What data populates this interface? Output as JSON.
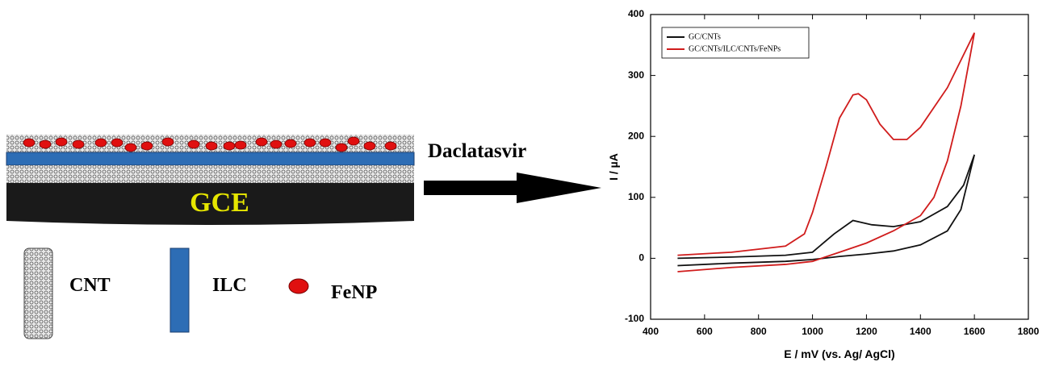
{
  "labels": {
    "electrode": "GCE",
    "cnt": "CNT",
    "ilc": "ILC",
    "fenp": "FeNP",
    "analyte": "Daclatasvir"
  },
  "chart_data": {
    "type": "line",
    "x_label": "E / mV (vs. Ag/ AgCl)",
    "y_label": "I / µA",
    "xlim": [
      400,
      1800
    ],
    "xticks": [
      400,
      600,
      800,
      1000,
      1200,
      1400,
      1600,
      1800
    ],
    "ylim": [
      -100,
      400
    ],
    "yticks": [
      -100,
      0,
      100,
      200,
      300,
      400
    ],
    "legend": "upper left",
    "series": [
      {
        "name": "GC/CNTs",
        "color": "#111111",
        "x": [
          500,
          700,
          900,
          1000,
          1080,
          1150,
          1220,
          1300,
          1400,
          1500,
          1560,
          1600,
          1550,
          1500,
          1400,
          1300,
          1200,
          1100,
          1000,
          900,
          700,
          500
        ],
        "values": [
          0,
          2,
          5,
          10,
          40,
          62,
          55,
          52,
          60,
          85,
          120,
          170,
          80,
          45,
          22,
          12,
          7,
          3,
          -2,
          -5,
          -8,
          -12
        ]
      },
      {
        "name": "GC/CNTs/ILC/CNTs/FeNPs",
        "color": "#d01c1c",
        "x": [
          500,
          700,
          900,
          970,
          1000,
          1050,
          1100,
          1150,
          1170,
          1200,
          1250,
          1300,
          1350,
          1400,
          1500,
          1600,
          1550,
          1500,
          1450,
          1400,
          1300,
          1200,
          1100,
          1000,
          900,
          700,
          500
        ],
        "values": [
          5,
          10,
          20,
          40,
          75,
          150,
          230,
          268,
          270,
          260,
          220,
          195,
          195,
          215,
          280,
          370,
          250,
          160,
          100,
          70,
          45,
          25,
          10,
          -5,
          -10,
          -15,
          -22
        ]
      }
    ]
  }
}
